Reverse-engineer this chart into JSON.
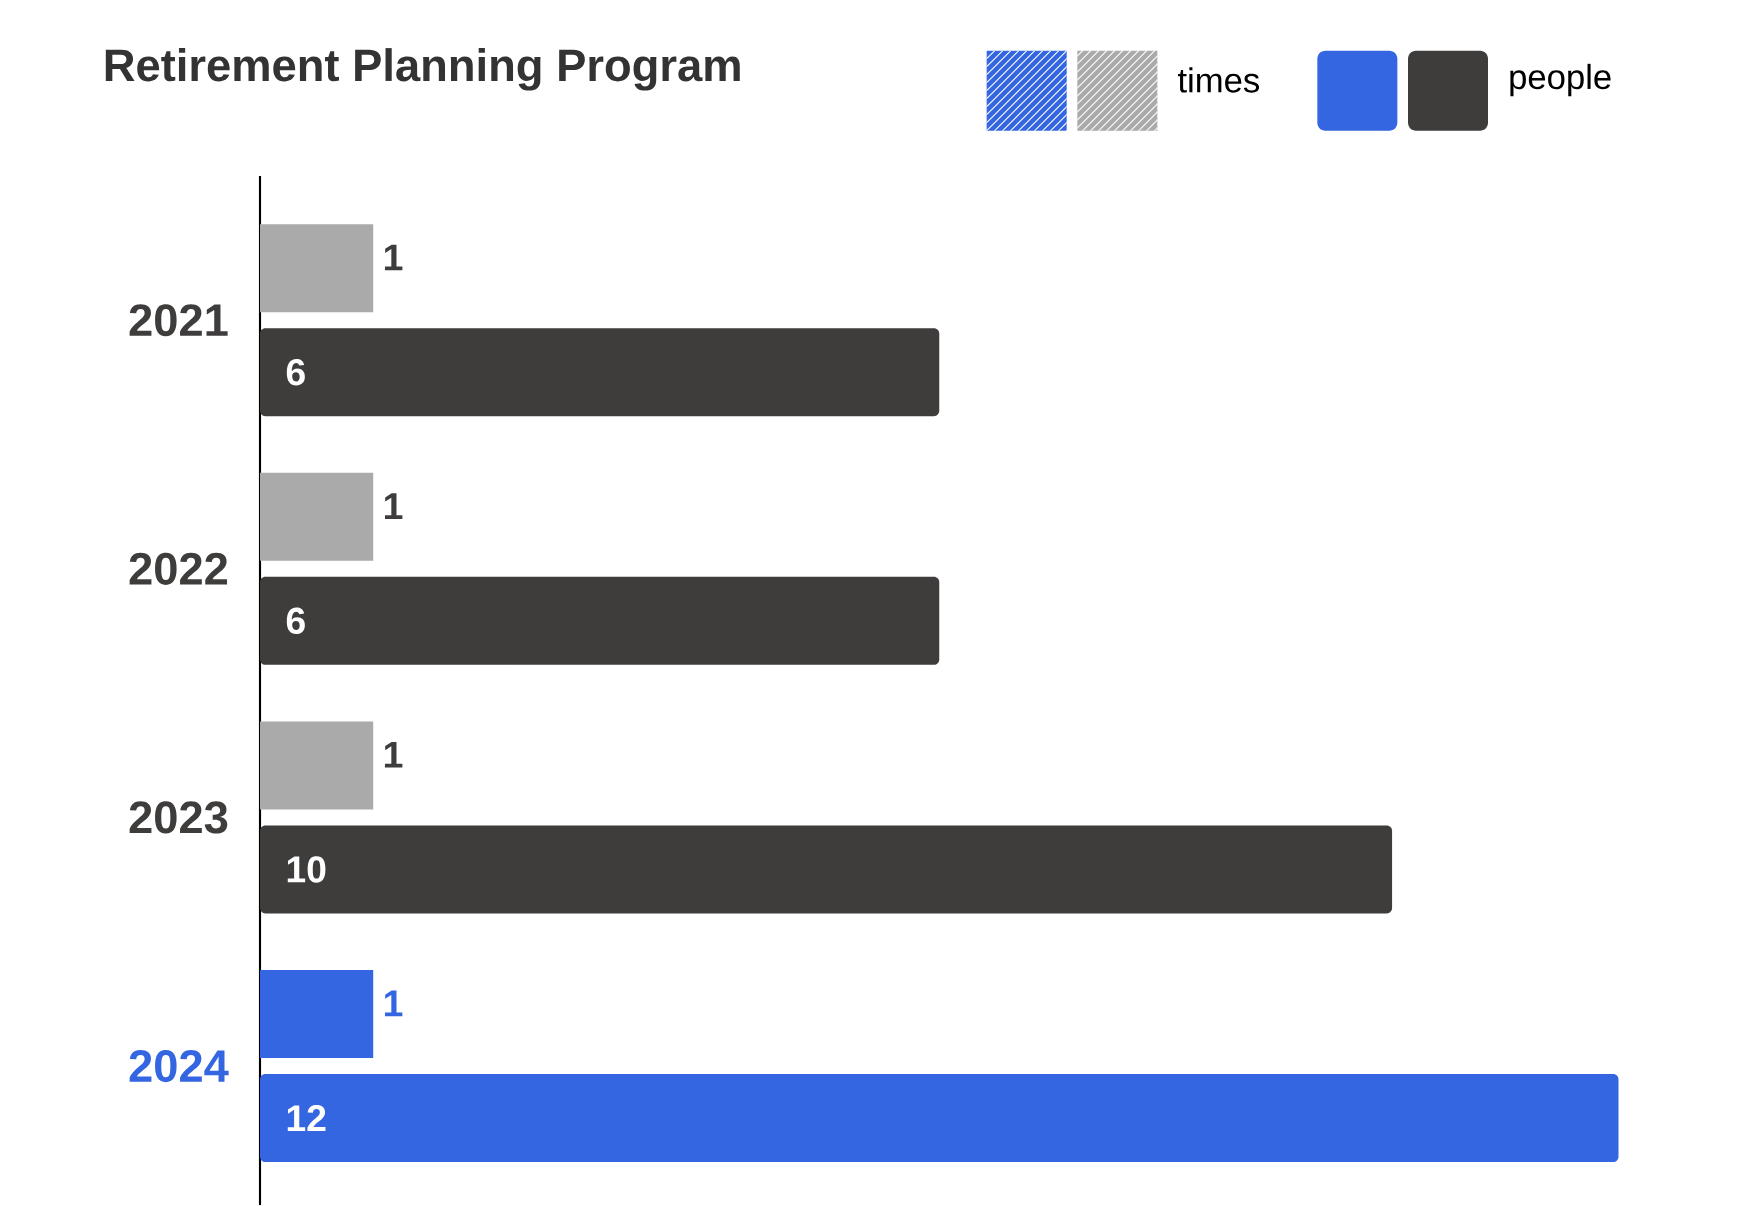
{
  "chart_data": {
    "type": "bar",
    "orientation": "horizontal",
    "title": "Retirement Planning Program",
    "categories": [
      "2021",
      "2022",
      "2023",
      "2024"
    ],
    "series": [
      {
        "name": "times",
        "values": [
          1,
          1,
          1,
          1
        ],
        "colors": [
          "#aaaaaa",
          "#aaaaaa",
          "#aaaaaa",
          "#3366e0"
        ]
      },
      {
        "name": "people",
        "values": [
          6,
          6,
          10,
          12
        ],
        "colors": [
          "#3f3c3c",
          "#3f3c3c",
          "#3f3c3c",
          "#3366e0"
        ]
      }
    ],
    "data_labels": true,
    "legend": "top right"
  }
}
